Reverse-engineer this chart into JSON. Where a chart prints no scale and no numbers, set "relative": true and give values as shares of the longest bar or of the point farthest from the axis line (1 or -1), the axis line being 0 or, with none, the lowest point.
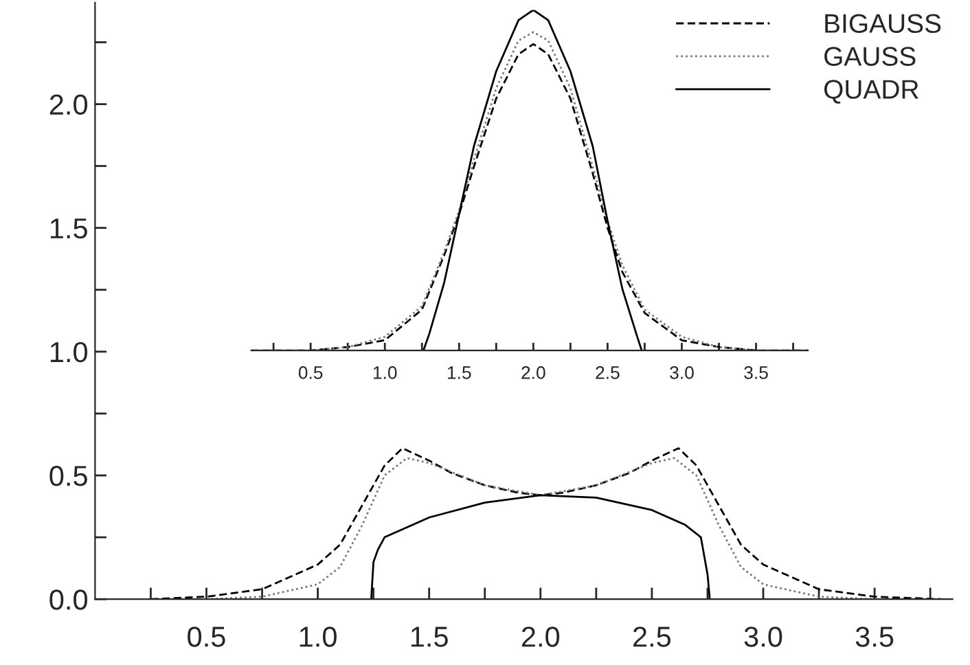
{
  "chart_data": [
    {
      "type": "line",
      "xlim": [
        0,
        3.85
      ],
      "ylim": [
        0,
        2.41
      ],
      "xticks": [
        {
          "value": 0.25,
          "label": null
        },
        0.5,
        {
          "value": 0.75,
          "label": null
        },
        {
          "value": 1,
          "label": "1.0"
        },
        {
          "value": 1.25,
          "label": null
        },
        1.5,
        {
          "value": 1.75,
          "label": null
        },
        {
          "value": 2,
          "label": "2.0"
        },
        {
          "value": 2.25,
          "label": null
        },
        2.5,
        {
          "value": 2.75,
          "label": null
        },
        {
          "value": 3,
          "label": "3.0"
        },
        {
          "value": 3.25,
          "label": null
        },
        3.5,
        {
          "value": 3.75,
          "label": null
        }
      ],
      "yticks": [
        {
          "value": 0,
          "label": "0.0"
        },
        {
          "value": 0.25,
          "label": null
        },
        0.5,
        {
          "value": 0.75,
          "label": null
        },
        {
          "value": 1,
          "label": "1.0"
        },
        {
          "value": 1.25,
          "label": null
        },
        1.5,
        {
          "value": 1.75,
          "label": null
        },
        {
          "value": 2,
          "label": "2.0"
        },
        {
          "value": 2.25,
          "label": null
        }
      ],
      "legend": "top right",
      "grid": false,
      "series": [
        {
          "name": "BIGAUSS",
          "color": "#000000",
          "line_style": "dashed",
          "x": [
            0.25,
            0.5,
            0.75,
            1.0,
            1.1,
            1.2,
            1.25,
            1.3,
            1.38,
            1.5,
            1.6,
            1.75,
            1.9,
            2.0,
            2.1,
            2.25,
            2.4,
            2.5,
            2.62,
            2.7,
            2.75,
            2.8,
            2.9,
            3.0,
            3.25,
            3.5,
            3.8
          ],
          "values": [
            0.0,
            0.01,
            0.04,
            0.14,
            0.22,
            0.38,
            0.46,
            0.54,
            0.61,
            0.56,
            0.51,
            0.46,
            0.43,
            0.42,
            0.43,
            0.46,
            0.51,
            0.56,
            0.61,
            0.54,
            0.46,
            0.38,
            0.22,
            0.14,
            0.04,
            0.01,
            0.0
          ]
        },
        {
          "name": "GAUSS",
          "color": "#777777",
          "line_style": "dotted",
          "x": [
            0.5,
            0.75,
            1.0,
            1.1,
            1.2,
            1.3,
            1.4,
            1.5,
            1.75,
            2.0,
            2.25,
            2.5,
            2.6,
            2.7,
            2.8,
            2.9,
            3.0,
            3.25,
            3.5
          ],
          "values": [
            0.0,
            0.01,
            0.06,
            0.13,
            0.3,
            0.5,
            0.57,
            0.55,
            0.46,
            0.42,
            0.46,
            0.55,
            0.57,
            0.5,
            0.3,
            0.13,
            0.06,
            0.01,
            0.0
          ]
        },
        {
          "name": "QUADR",
          "color": "#000000",
          "line_style": "solid",
          "x": [
            1.24,
            1.25,
            1.27,
            1.3,
            1.5,
            1.75,
            2.0,
            2.25,
            2.5,
            2.65,
            2.72,
            2.75,
            2.76
          ],
          "values": [
            0.0,
            0.15,
            0.2,
            0.25,
            0.33,
            0.39,
            0.42,
            0.41,
            0.36,
            0.3,
            0.25,
            0.1,
            0.0
          ]
        }
      ]
    },
    {
      "type": "line",
      "relative": true,
      "tick_labels": "x",
      "xlim": [
        0.1,
        3.85
      ],
      "xticks": [
        {
          "value": 0.25,
          "label": null
        },
        0.5,
        {
          "value": 0.75,
          "label": null
        },
        {
          "value": 1,
          "label": "1.0"
        },
        {
          "value": 1.25,
          "label": null
        },
        1.5,
        {
          "value": 1.75,
          "label": null
        },
        {
          "value": 2,
          "label": "2.0"
        },
        {
          "value": 2.25,
          "label": null
        },
        2.5,
        {
          "value": 2.75,
          "label": null
        },
        {
          "value": 3,
          "label": "3.0"
        },
        {
          "value": 3.25,
          "label": null
        },
        3.5,
        {
          "value": 3.75,
          "label": null
        }
      ],
      "legend": false,
      "grid": false,
      "series": [
        {
          "color": "#000000",
          "line_style": "dashed",
          "x": [
            0.1,
            0.5,
            0.75,
            1.0,
            1.25,
            1.4,
            1.5,
            1.6,
            1.75,
            1.9,
            2.0,
            2.1,
            2.25,
            2.4,
            2.5,
            2.6,
            2.75,
            3.0,
            3.25,
            3.5,
            3.85
          ],
          "values": [
            0.0,
            0.0,
            0.01,
            0.03,
            0.12,
            0.28,
            0.4,
            0.54,
            0.74,
            0.87,
            0.9,
            0.87,
            0.74,
            0.52,
            0.36,
            0.23,
            0.11,
            0.03,
            0.01,
            0.0,
            0.0
          ]
        },
        {
          "color": "#777777",
          "line_style": "dotted",
          "x": [
            0.1,
            0.5,
            0.75,
            1.0,
            1.25,
            1.4,
            1.5,
            1.6,
            1.75,
            1.9,
            2.0,
            2.1,
            2.25,
            2.4,
            2.5,
            2.6,
            2.75,
            3.0,
            3.25,
            3.5,
            3.85
          ],
          "values": [
            0.0,
            0.0,
            0.01,
            0.04,
            0.13,
            0.29,
            0.41,
            0.56,
            0.77,
            0.91,
            0.935,
            0.91,
            0.77,
            0.54,
            0.38,
            0.25,
            0.12,
            0.04,
            0.01,
            0.0,
            0.0
          ]
        },
        {
          "color": "#000000",
          "line_style": "solid",
          "x": [
            1.26,
            1.3,
            1.4,
            1.5,
            1.6,
            1.75,
            1.9,
            2.0,
            2.1,
            2.25,
            2.4,
            2.5,
            2.6,
            2.7,
            2.73
          ],
          "values": [
            0.0,
            0.05,
            0.2,
            0.4,
            0.6,
            0.82,
            0.97,
            1.0,
            0.97,
            0.82,
            0.6,
            0.38,
            0.18,
            0.04,
            0.0
          ]
        }
      ]
    }
  ]
}
